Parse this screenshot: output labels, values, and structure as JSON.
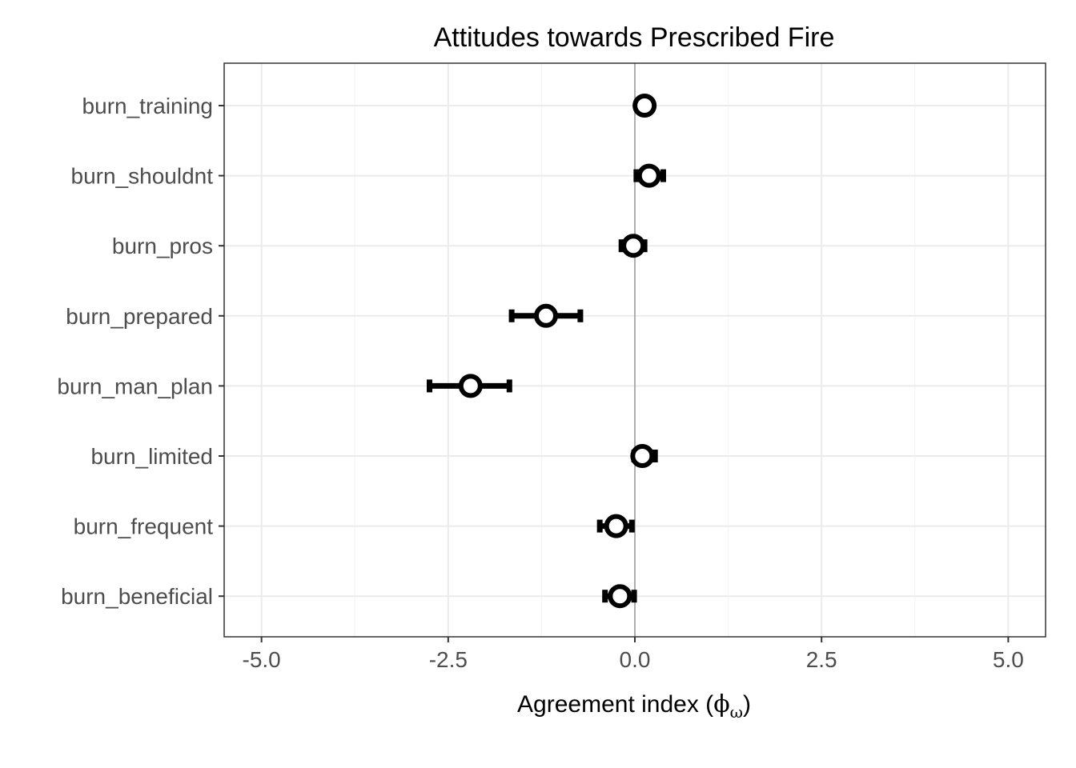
{
  "chart_data": {
    "type": "scatter",
    "title": "Attitudes towards Prescribed Fire",
    "xlabel": "Agreement index (",
    "xlabel_symbol": "ϕ",
    "xlabel_subscript": "ω",
    "xlabel_close": ")",
    "ylabel": "",
    "xlim": [
      -5.5,
      5.5
    ],
    "xticks": [
      -5.0,
      -2.5,
      0.0,
      2.5,
      5.0
    ],
    "xtick_labels": [
      "-5.0",
      "-2.5",
      "0.0",
      "2.5",
      "5.0"
    ],
    "reference_line_x": 0,
    "grid": true,
    "legend": "none",
    "items": [
      {
        "label": "burn_training",
        "estimate": 0.13,
        "lower": 0.05,
        "upper": 0.2
      },
      {
        "label": "burn_shouldnt",
        "estimate": 0.19,
        "lower": 0.02,
        "upper": 0.38
      },
      {
        "label": "burn_pros",
        "estimate": -0.02,
        "lower": -0.18,
        "upper": 0.13
      },
      {
        "label": "burn_prepared",
        "estimate": -1.19,
        "lower": -1.65,
        "upper": -0.73
      },
      {
        "label": "burn_man_plan",
        "estimate": -2.2,
        "lower": -2.75,
        "upper": -1.68
      },
      {
        "label": "burn_limited",
        "estimate": 0.1,
        "lower": -0.01,
        "upper": 0.27
      },
      {
        "label": "burn_frequent",
        "estimate": -0.25,
        "lower": -0.47,
        "upper": -0.04
      },
      {
        "label": "burn_beneficial",
        "estimate": -0.2,
        "lower": -0.4,
        "upper": -0.01
      }
    ],
    "colors": {
      "marker_stroke": "#000000",
      "marker_fill": "#ffffff",
      "errorbar": "#000000",
      "grid_major": "#ebebeb",
      "grid_minor": "#f5f5f5",
      "reference_line": "#999999",
      "panel_border": "#333333"
    }
  }
}
